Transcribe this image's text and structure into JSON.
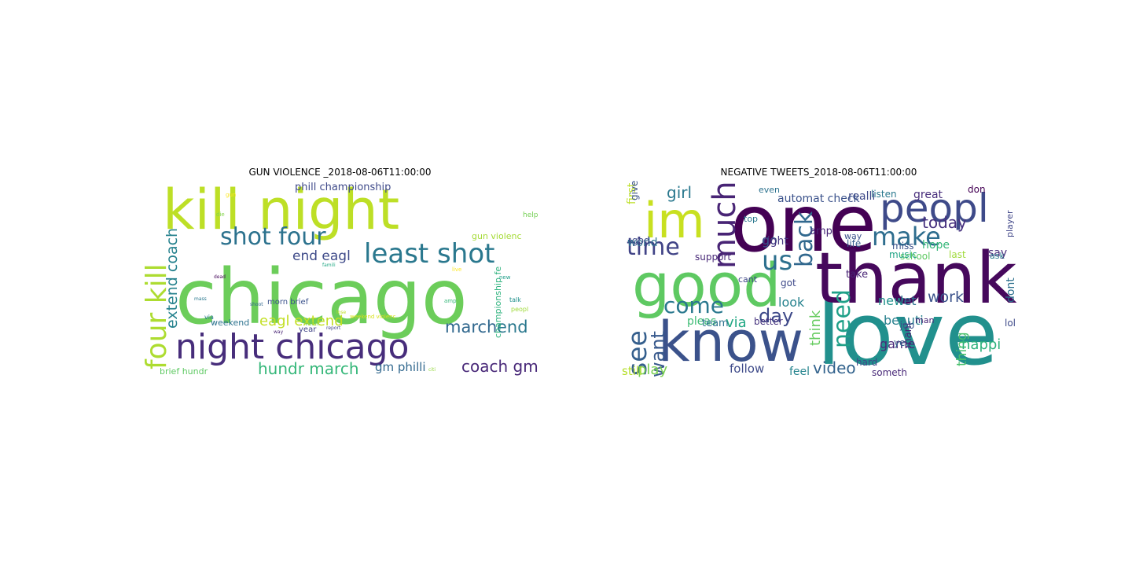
{
  "figure": {
    "panels": [
      {
        "title": "GUN VIOLENCE _2018-08-06T11:00:00",
        "words": [
          {
            "text": "chicago",
            "color": "#6ccd5a"
          },
          {
            "text": "kill night",
            "color": "#bddf26"
          },
          {
            "text": "night chicago",
            "color": "#472d7b"
          },
          {
            "text": "least shot",
            "color": "#2a788e"
          },
          {
            "text": "shot four",
            "color": "#2c728e"
          },
          {
            "text": "four kill",
            "color": "#addc30"
          },
          {
            "text": "hundr march",
            "color": "#35b779"
          },
          {
            "text": "coach gm",
            "color": "#482878"
          },
          {
            "text": "march",
            "color": "#31688e"
          },
          {
            "text": "end",
            "color": "#2a788e"
          },
          {
            "text": "eagl extend",
            "color": "#c2df23"
          },
          {
            "text": "extend coach",
            "color": "#26828e"
          },
          {
            "text": "end eagl",
            "color": "#3e4a89"
          },
          {
            "text": "phill championship",
            "color": "#3e4989"
          },
          {
            "text": "gm philli",
            "color": "#31688e"
          },
          {
            "text": "championship fe",
            "color": "#2db27d"
          },
          {
            "text": "gun violenc",
            "color": "#a5db36"
          },
          {
            "text": "brief hundr",
            "color": "#5ec962"
          },
          {
            "text": "morn brief",
            "color": "#3b528b"
          },
          {
            "text": "weekend",
            "color": "#2c728e"
          },
          {
            "text": "year",
            "color": "#414487"
          },
          {
            "text": "help",
            "color": "#75d054"
          },
          {
            "text": "peopl",
            "color": "#9fda3a"
          },
          {
            "text": "talk",
            "color": "#21918c"
          },
          {
            "text": "via",
            "color": "#2a788e"
          },
          {
            "text": "die",
            "color": "#84d44b"
          },
          {
            "text": "gun",
            "color": "#fde725"
          },
          {
            "text": "live",
            "color": "#fde725"
          },
          {
            "text": "new",
            "color": "#1f9e89"
          },
          {
            "text": "amp",
            "color": "#35b779"
          },
          {
            "text": "citi",
            "color": "#95d840"
          },
          {
            "text": "way",
            "color": "#482475"
          },
          {
            "text": "dead",
            "color": "#450559"
          },
          {
            "text": "mass",
            "color": "#2a788e"
          },
          {
            "text": "shoot",
            "color": "#31688e"
          },
          {
            "text": "famili",
            "color": "#22a884"
          },
          {
            "text": "report",
            "color": "#414487"
          },
          {
            "text": "victim",
            "color": "#7ad151"
          },
          {
            "text": "lose",
            "color": "#bddf26"
          },
          {
            "text": "weekend violenc",
            "color": "#d8e219"
          }
        ]
      },
      {
        "title": "NEGATIVE TWEETS_2018-08-06T11:00:00",
        "words": [
          {
            "text": "love",
            "color": "#21908d"
          },
          {
            "text": "one",
            "color": "#440154"
          },
          {
            "text": "thank",
            "color": "#46085c"
          },
          {
            "text": "know",
            "color": "#3b528b"
          },
          {
            "text": "good",
            "color": "#5ec962"
          },
          {
            "text": "peopl",
            "color": "#3e4a89"
          },
          {
            "text": "im",
            "color": "#c8e020"
          },
          {
            "text": "make",
            "color": "#2e6d8e"
          },
          {
            "text": "much",
            "color": "#482475"
          },
          {
            "text": "us",
            "color": "#2d708e"
          },
          {
            "text": "time",
            "color": "#414487"
          },
          {
            "text": "come",
            "color": "#2a788e"
          },
          {
            "text": "see",
            "color": "#355f8d"
          },
          {
            "text": "day",
            "color": "#3e4989"
          },
          {
            "text": "today",
            "color": "#46307e"
          },
          {
            "text": "need",
            "color": "#1fa088"
          },
          {
            "text": "want",
            "color": "#38598c"
          },
          {
            "text": "back",
            "color": "#31688e"
          },
          {
            "text": "video",
            "color": "#33638d"
          },
          {
            "text": "work",
            "color": "#3b528b"
          },
          {
            "text": "thing",
            "color": "#4ac16d"
          },
          {
            "text": "play",
            "color": "#7ad151"
          },
          {
            "text": "girl",
            "color": "#2a788e"
          },
          {
            "text": "happi",
            "color": "#2db27d"
          },
          {
            "text": "follow",
            "color": "#3e4a89"
          },
          {
            "text": "look",
            "color": "#26828e"
          },
          {
            "text": "let",
            "color": "#2c728e"
          },
          {
            "text": "new",
            "color": "#21918c"
          },
          {
            "text": "think",
            "color": "#65cb5e"
          },
          {
            "text": "feel",
            "color": "#25848e"
          },
          {
            "text": "game",
            "color": "#482878"
          },
          {
            "text": "via",
            "color": "#22a884"
          },
          {
            "text": "go",
            "color": "#38588c"
          },
          {
            "text": "still",
            "color": "#b5de2b"
          },
          {
            "text": "beauti",
            "color": "#27808e"
          },
          {
            "text": "say",
            "color": "#472c7a"
          },
          {
            "text": "hope",
            "color": "#35b779"
          },
          {
            "text": "realli",
            "color": "#3e4989"
          },
          {
            "text": "great",
            "color": "#472d7b"
          },
          {
            "text": "first",
            "color": "#bddf26"
          },
          {
            "text": "world",
            "color": "#2d708e"
          },
          {
            "text": "support",
            "color": "#482878"
          },
          {
            "text": "right",
            "color": "#453781"
          },
          {
            "text": "amp",
            "color": "#482677"
          },
          {
            "text": "life",
            "color": "#365d8d"
          },
          {
            "text": "pleas",
            "color": "#3dbc74"
          },
          {
            "text": "team",
            "color": "#2c728e"
          },
          {
            "text": "automat check",
            "color": "#3b528b"
          },
          {
            "text": "listen",
            "color": "#2a788e"
          },
          {
            "text": "give",
            "color": "#3b528b"
          },
          {
            "text": "god",
            "color": "#3f4788"
          },
          {
            "text": "dont",
            "color": "#2d708e"
          },
          {
            "text": "mani",
            "color": "#482575"
          },
          {
            "text": "ye",
            "color": "#33638d"
          },
          {
            "text": "lol",
            "color": "#3e4a89"
          },
          {
            "text": "job",
            "color": "#3b528b"
          },
          {
            "text": "hard",
            "color": "#3f4788"
          },
          {
            "text": "take",
            "color": "#482475"
          },
          {
            "text": "got",
            "color": "#3e4989"
          },
          {
            "text": "better",
            "color": "#46337f"
          },
          {
            "text": "school",
            "color": "#5ec962"
          },
          {
            "text": "last",
            "color": "#9fda3a"
          },
          {
            "text": "music",
            "color": "#20a486"
          },
          {
            "text": "player",
            "color": "#404688"
          },
          {
            "text": "ask",
            "color": "#2a788e"
          },
          {
            "text": "man",
            "color": "#482878"
          },
          {
            "text": "miss",
            "color": "#3b528b"
          },
          {
            "text": "top",
            "color": "#2a788e"
          },
          {
            "text": "way",
            "color": "#3b528b"
          },
          {
            "text": "even",
            "color": "#2c728e"
          },
          {
            "text": "don",
            "color": "#440154"
          },
          {
            "text": "someth",
            "color": "#482878"
          },
          {
            "text": "cant",
            "color": "#3f4788"
          }
        ]
      }
    ]
  }
}
